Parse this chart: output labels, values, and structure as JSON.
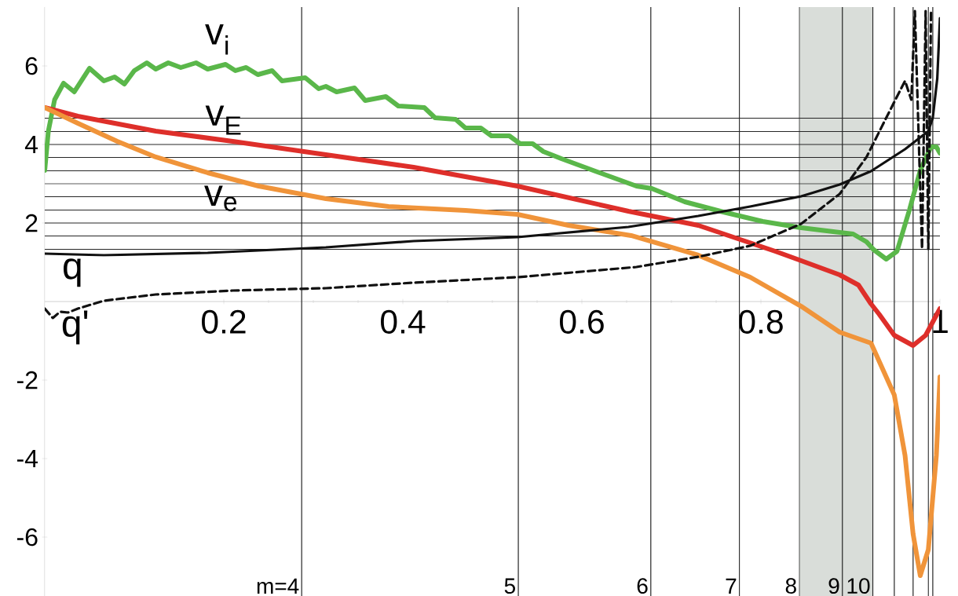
{
  "chart_data": {
    "type": "line",
    "xlim": [
      0,
      1
    ],
    "ylim": [
      -7.5,
      7.5
    ],
    "xticks": [
      0.2,
      0.4,
      0.6,
      0.8,
      1
    ],
    "yticks": [
      -6,
      -4,
      -2,
      2,
      4,
      6
    ],
    "marker": "none",
    "series": [
      {
        "color": "#5ab74a",
        "x": [
          0,
          0.004,
          0.011,
          0.021,
          0.033,
          0.05,
          0.066,
          0.078,
          0.089,
          0.1,
          0.114,
          0.124,
          0.138,
          0.152,
          0.169,
          0.182,
          0.202,
          0.213,
          0.225,
          0.238,
          0.254,
          0.265,
          0.291,
          0.306,
          0.314,
          0.326,
          0.346,
          0.358,
          0.381,
          0.395,
          0.424,
          0.436,
          0.459,
          0.47,
          0.487,
          0.499,
          0.519,
          0.531,
          0.545,
          0.557,
          0.577,
          0.615,
          0.661,
          0.678,
          0.715,
          0.758,
          0.802,
          0.845,
          0.888,
          0.903,
          0.918,
          0.926,
          0.94,
          0.952,
          0.966,
          0.978,
          0.99,
          0.996,
          1.0
        ],
        "values": [
          3.34,
          4.34,
          5.14,
          5.56,
          5.34,
          5.94,
          5.62,
          5.72,
          5.54,
          5.88,
          6.08,
          5.92,
          6.08,
          5.96,
          6.08,
          5.92,
          6.04,
          5.88,
          5.96,
          5.78,
          5.88,
          5.62,
          5.7,
          5.42,
          5.48,
          5.34,
          5.44,
          5.12,
          5.22,
          4.98,
          4.94,
          4.68,
          4.64,
          4.42,
          4.42,
          4.22,
          4.22,
          4.02,
          4.02,
          3.82,
          3.64,
          3.32,
          2.94,
          2.88,
          2.54,
          2.28,
          2.04,
          1.88,
          1.76,
          1.72,
          1.52,
          1.32,
          1.08,
          1.28,
          2.34,
          3.34,
          3.94,
          3.94,
          3.78
        ]
      },
      {
        "color": "#de2f2a",
        "x": [
          0,
          0.037,
          0.124,
          0.21,
          0.314,
          0.412,
          0.528,
          0.652,
          0.73,
          0.816,
          0.845,
          0.888,
          0.909,
          0.923,
          0.932,
          0.949,
          0.97,
          0.984,
          1.0
        ],
        "values": [
          4.94,
          4.72,
          4.34,
          4.08,
          3.74,
          3.42,
          2.94,
          2.3,
          1.94,
          1.28,
          1.04,
          0.68,
          0.42,
          -0.06,
          -0.32,
          -0.86,
          -1.12,
          -0.86,
          -0.18
        ]
      },
      {
        "color": "#f0943a",
        "x": [
          0,
          0.037,
          0.081,
          0.124,
          0.182,
          0.239,
          0.314,
          0.384,
          0.47,
          0.528,
          0.585,
          0.655,
          0.73,
          0.788,
          0.845,
          0.888,
          0.923,
          0.949,
          0.961,
          0.97,
          0.978,
          0.987,
          0.996,
          1.0
        ],
        "values": [
          4.94,
          4.54,
          4.08,
          3.68,
          3.28,
          2.94,
          2.62,
          2.42,
          2.32,
          2.22,
          1.94,
          1.68,
          1.18,
          0.62,
          -0.12,
          -0.78,
          -1.06,
          -2.38,
          -3.92,
          -5.92,
          -6.98,
          -6.32,
          -3.92,
          -1.92
        ]
      },
      {
        "color": "#111111",
        "x": [
          0,
          0.066,
          0.182,
          0.314,
          0.412,
          0.528,
          0.652,
          0.73,
          0.788,
          0.845,
          0.888,
          0.923,
          0.961,
          0.987,
          0.992,
          0.997,
          1.0
        ],
        "values": [
          1.22,
          1.18,
          1.24,
          1.38,
          1.54,
          1.64,
          1.9,
          2.18,
          2.42,
          2.68,
          2.98,
          3.32,
          3.88,
          4.34,
          4.68,
          5.68,
          7.22
        ]
      },
      {
        "color": "#111111",
        "line_style": "dashed",
        "x": [
          0,
          0.009,
          0.017,
          0.026,
          0.037,
          0.066,
          0.124,
          0.21,
          0.314,
          0.412,
          0.528,
          0.661,
          0.73,
          0.788,
          0.845,
          0.888,
          0.918,
          0.94,
          0.961,
          0.968,
          0.972,
          0.98,
          0.984,
          0.987,
          0.99
        ],
        "values": [
          -0.18,
          -0.42,
          -0.26,
          -0.28,
          -0.18,
          0.02,
          0.18,
          0.28,
          0.34,
          0.48,
          0.62,
          0.88,
          1.14,
          1.42,
          1.98,
          2.74,
          3.68,
          4.68,
          5.62,
          5.14,
          7.4,
          1.34,
          7.4,
          1.34,
          7.4
        ]
      }
    ],
    "bands": [
      {
        "axis": "x",
        "from": 0.843,
        "to": 0.925,
        "color": "#d9ddd9"
      }
    ],
    "ref_lines": [
      {
        "axis": "y",
        "value": 1.33
      },
      {
        "axis": "y",
        "value": 1.67
      },
      {
        "axis": "y",
        "value": 2
      },
      {
        "axis": "y",
        "value": 2.33
      },
      {
        "axis": "y",
        "value": 2.67
      },
      {
        "axis": "y",
        "value": 3
      },
      {
        "axis": "y",
        "value": 3.33
      },
      {
        "axis": "y",
        "value": 3.67
      },
      {
        "axis": "y",
        "value": 4
      },
      {
        "axis": "y",
        "value": 4.33
      },
      {
        "axis": "y",
        "value": 4.67
      },
      {
        "axis": "x",
        "value": 0.287
      },
      {
        "axis": "x",
        "value": 0.529
      },
      {
        "axis": "x",
        "value": 0.677
      },
      {
        "axis": "x",
        "value": 0.776
      },
      {
        "axis": "x",
        "value": 0.843
      },
      {
        "axis": "x",
        "value": 0.891
      },
      {
        "axis": "x",
        "value": 0.925
      },
      {
        "axis": "x",
        "value": 0.949
      },
      {
        "axis": "x",
        "value": 0.97
      },
      {
        "axis": "x",
        "value": 0.987
      },
      {
        "axis": "x",
        "value": 0.992
      }
    ],
    "annotations": [
      "v$_{i}$",
      "v$_{E}$",
      "v$_{e}$",
      "q",
      "q'",
      "m=4",
      "5",
      "6",
      "7",
      "8",
      "9",
      "10"
    ]
  }
}
